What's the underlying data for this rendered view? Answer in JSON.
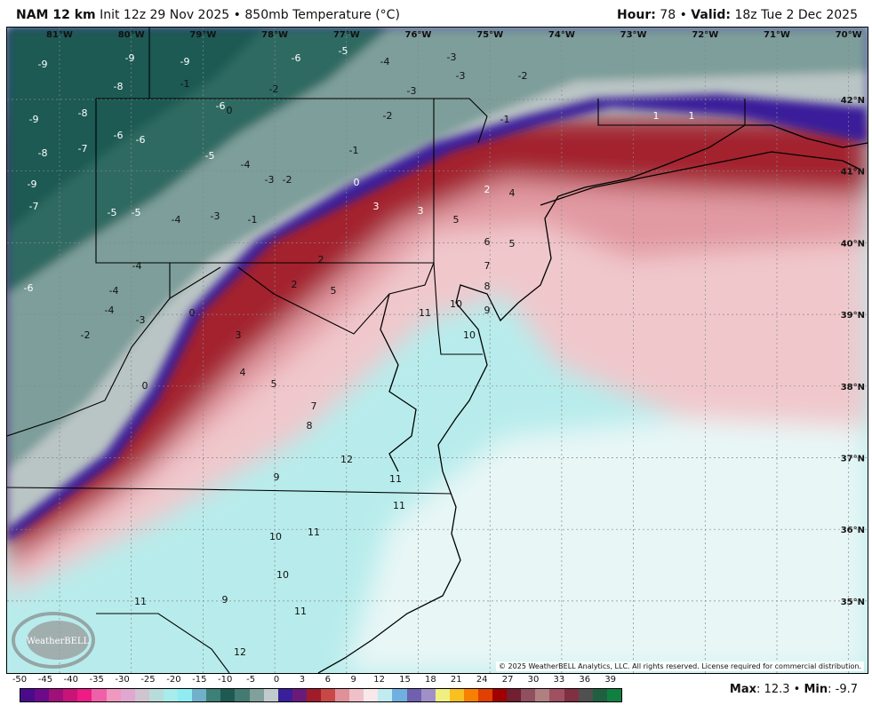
{
  "header": {
    "model": "NAM 12 km",
    "init": "Init 12z 29 Nov 2025",
    "separator": "•",
    "field": "850mb Temperature (°C)",
    "hour_label": "Hour:",
    "hour": "78",
    "valid_label": "Valid:",
    "valid": "18z Tue 2 Dec 2025"
  },
  "map": {
    "lon_labels": [
      "81°W",
      "80°W",
      "79°W",
      "78°W",
      "77°W",
      "76°W",
      "75°W",
      "74°W",
      "73°W",
      "72°W",
      "71°W",
      "70°W"
    ],
    "lat_labels": [
      "42°N",
      "41°N",
      "40°N",
      "39°N",
      "38°N",
      "37°N",
      "36°N",
      "35°N"
    ],
    "temperature_labels": [
      -9,
      -9,
      -9,
      -6,
      -5,
      -4,
      -3,
      -3,
      -2,
      -3,
      -2,
      -1,
      -9,
      -8,
      -8,
      -6,
      -2,
      -1,
      0,
      1,
      1,
      -9,
      -8,
      -7,
      -7,
      -6,
      -6,
      -5,
      -4,
      -3,
      -2,
      -1,
      -5,
      -5,
      -4,
      -3,
      -1,
      0,
      -4,
      -6,
      -4,
      -4,
      -3,
      -2,
      0,
      0,
      2,
      3,
      3,
      2,
      4,
      5,
      6,
      7,
      8,
      9,
      10,
      10,
      11,
      2,
      3,
      4,
      5,
      5,
      5,
      7,
      8,
      9,
      10,
      11,
      12,
      11,
      11,
      12,
      11,
      10,
      9,
      11
    ],
    "copyright": "© 2025 WeatherBELL Analytics, LLC. All rights reserved. License required for commercial distribution.",
    "logo_text": "WeatherBELL"
  },
  "colorbar": {
    "ticks": [
      "-50",
      "-45",
      "-40",
      "-35",
      "-30",
      "-25",
      "-20",
      "-15",
      "-10",
      "-5",
      "0",
      "3",
      "6",
      "9",
      "12",
      "15",
      "18",
      "21",
      "24",
      "27",
      "30",
      "33",
      "36",
      "39"
    ],
    "colors": [
      "#4a0a8c",
      "#6c0a8a",
      "#a0107a",
      "#c81478",
      "#ee1c84",
      "#f060a8",
      "#f098c0",
      "#e0a8d0",
      "#d0c4d0",
      "#b8dcdc",
      "#a8ecec",
      "#90ecf0",
      "#70b0c8",
      "#3c8078",
      "#1e5a52",
      "#447a72",
      "#80a09c",
      "#c0cccc",
      "#3a1f9a",
      "#6a1a7a",
      "#a01c2a",
      "#c84848",
      "#e09098",
      "#f0c0c8",
      "#f8e8ea",
      "#c0ecf0",
      "#70b0e0",
      "#7060b0",
      "#a090c8",
      "#f0f080",
      "#f8c020",
      "#f88000",
      "#e04000",
      "#a00000",
      "#702030",
      "#905060",
      "#b08080",
      "#a05060",
      "#803040",
      "#505050",
      "#206040",
      "#108040"
    ],
    "max_label": "Max",
    "max": "12.3",
    "min_label": "Min",
    "min": "-9.7"
  }
}
